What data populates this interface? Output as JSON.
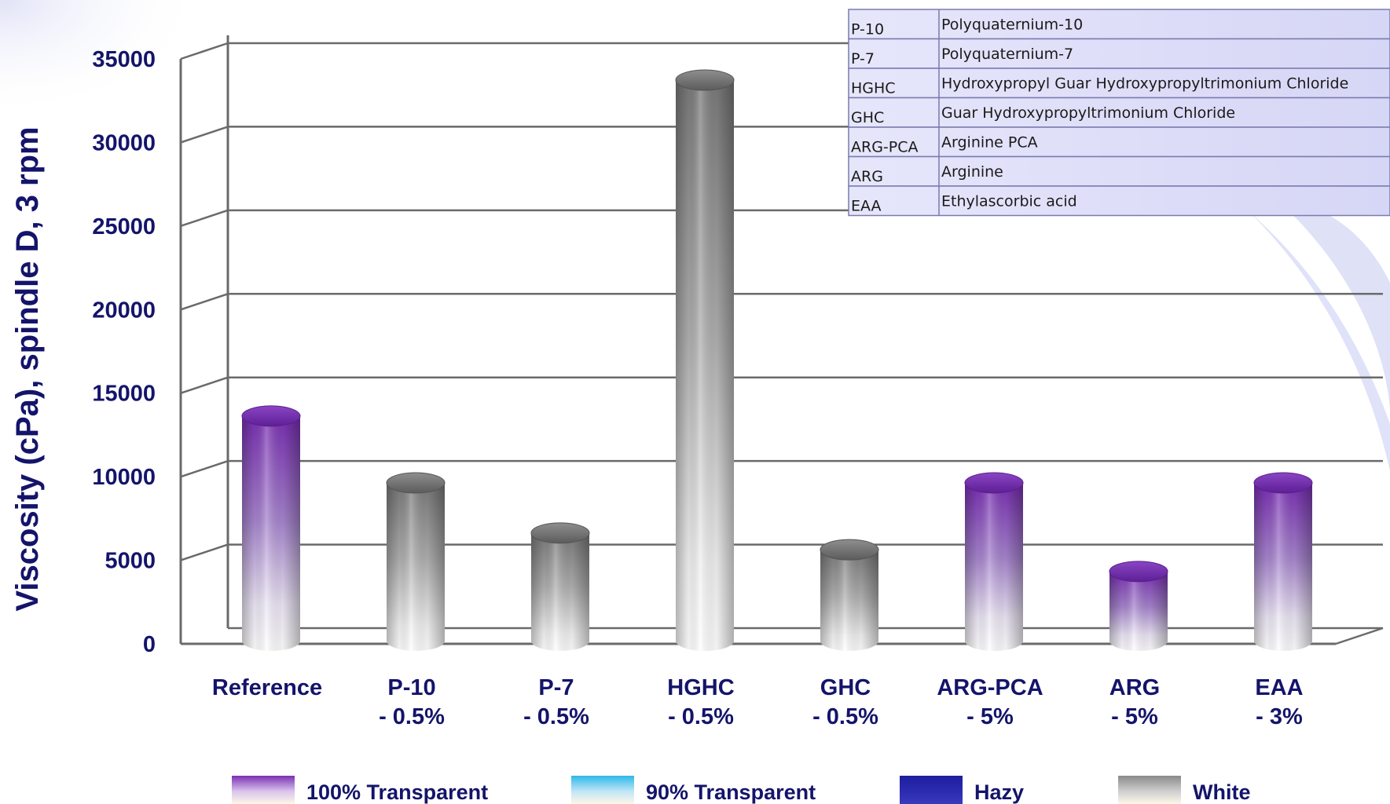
{
  "chart_data": {
    "type": "bar",
    "title": "",
    "ylabel": "Viscosity (cPa), spindle D, 3 rpm",
    "xlabel": "",
    "ylim": [
      0,
      35000
    ],
    "yticks": [
      0,
      5000,
      10000,
      15000,
      20000,
      25000,
      30000,
      35000
    ],
    "ytick_labels": [
      "0",
      "5000",
      "10000",
      "15000",
      "20000",
      "25000",
      "30000",
      "35000"
    ],
    "grid": true,
    "bar_style": "3d-cylinder",
    "categories": [
      {
        "line1": "Reference",
        "line2": "",
        "value": 14100,
        "appearance": "100% Transparent"
      },
      {
        "line1": "P-10",
        "line2": "- 0.5%",
        "value": 10100,
        "appearance": "White"
      },
      {
        "line1": "P-7",
        "line2": "- 0.5%",
        "value": 7100,
        "appearance": "White"
      },
      {
        "line1": "HGHC",
        "line2": "- 0.5%",
        "value": 34200,
        "appearance": "White"
      },
      {
        "line1": "GHC",
        "line2": "- 0.5%",
        "value": 6100,
        "appearance": "White"
      },
      {
        "line1": "ARG-PCA",
        "line2": "- 5%",
        "value": 10100,
        "appearance": "100% Transparent"
      },
      {
        "line1": "ARG",
        "line2": "- 5%",
        "value": 4800,
        "appearance": "100% Transparent"
      },
      {
        "line1": "EAA",
        "line2": "- 3%",
        "value": 10100,
        "appearance": "100% Transparent"
      }
    ],
    "legend": {
      "placement": "bottom",
      "items": [
        {
          "label": "100% Transparent",
          "color": "#7a2fb4"
        },
        {
          "label": "90% Transparent",
          "color": "#2fb8e8"
        },
        {
          "label": "Hazy",
          "color": "#1e1e9e"
        },
        {
          "label": "White",
          "color": "#8a8a8a"
        }
      ]
    },
    "abbreviation_table": {
      "placement": "top-right",
      "rows": [
        {
          "abbr": "P-10",
          "full": "Polyquaternium-10"
        },
        {
          "abbr": "P-7",
          "full": "Polyquaternium-7"
        },
        {
          "abbr": "HGHC",
          "full": "Hydroxypropyl Guar Hydroxypropyltrimonium Chloride"
        },
        {
          "abbr": "GHC",
          "full": "Guar Hydroxypropyltrimonium Chloride"
        },
        {
          "abbr": "ARG-PCA",
          "full": "Arginine PCA"
        },
        {
          "abbr": "ARG",
          "full": "Arginine"
        },
        {
          "abbr": "EAA",
          "full": "Ethylascorbic acid"
        }
      ]
    }
  },
  "colors": {
    "text": "#14146b",
    "grid": "#6a6a6a",
    "table_fill": "#dcdcf8",
    "table_border": "#7a7ab0"
  }
}
